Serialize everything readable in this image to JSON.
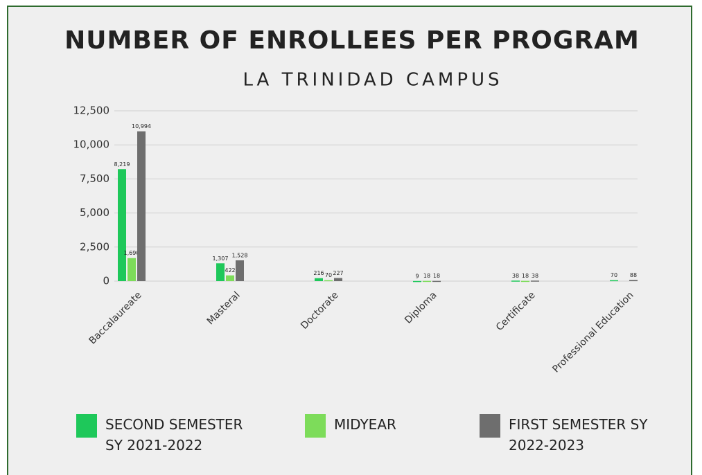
{
  "chart_data": {
    "type": "bar",
    "title": "NUMBER OF ENROLLEES PER PROGRAM",
    "subtitle": "LA TRINIDAD CAMPUS",
    "categories": [
      "Baccalaureate",
      "Masteral",
      "Doctorate",
      "Diploma",
      "Certificate",
      "Professional Education"
    ],
    "series": [
      {
        "name": "SECOND SEMESTER SY 2021-2022",
        "color": "#1ec85a",
        "values": [
          8219,
          1307,
          216,
          9,
          38,
          70
        ],
        "value_labels": [
          "8,219",
          "1,307",
          "216",
          "9",
          "38",
          "70"
        ]
      },
      {
        "name": "MIDYEAR",
        "color": "#7ddc5a",
        "values": [
          1690,
          422,
          70,
          18,
          18,
          null
        ],
        "value_labels": [
          "1,690",
          "422",
          "70",
          "18",
          "18",
          null
        ]
      },
      {
        "name": "FIRST SEMESTER SY 2022-2023",
        "color": "#6e6e6e",
        "values": [
          10994,
          1528,
          227,
          18,
          38,
          88
        ],
        "value_labels": [
          "10,994",
          "1,528",
          "227",
          "18",
          "38",
          "88"
        ]
      }
    ],
    "ylim": [
      0,
      12500
    ],
    "yticks": [
      0,
      {
        "value": 2500,
        "label": "2,500"
      },
      {
        "value": 5000,
        "label": "5,000"
      },
      {
        "value": 7500,
        "label": "7,500"
      },
      {
        "value": 10000,
        "label": "10,000"
      },
      {
        "value": 12500,
        "label": "12,500"
      }
    ],
    "grid": true
  }
}
